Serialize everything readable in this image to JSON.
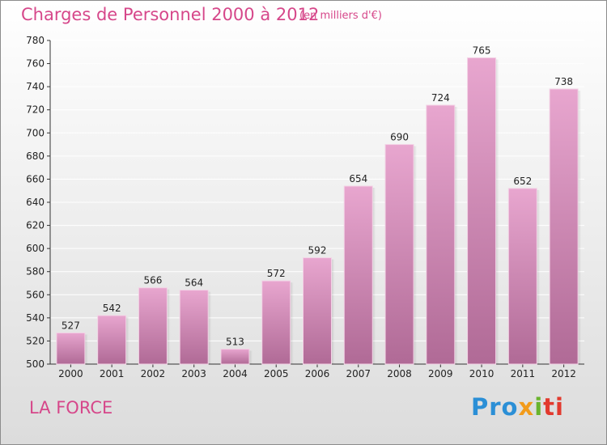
{
  "header": {
    "title": "Charges de Personnel 2000 à 2012",
    "subtitle": "(en milliers d'€)"
  },
  "footer": {
    "commune": "LA FORCE",
    "brand_parts": [
      "Pro",
      "x",
      "i",
      "ti"
    ]
  },
  "colors": {
    "title": "#d6478a",
    "bar_top": "#e8a6cf",
    "bar_bottom": "#b06a96",
    "grid": "#ffffff",
    "brand": [
      "#2b8fd6",
      "#f29b1a",
      "#6ab42d",
      "#e23a2e"
    ]
  },
  "chart_data": {
    "type": "bar",
    "title": "Charges de Personnel 2000 à 2012",
    "subtitle": "(en milliers d'€)",
    "categories": [
      "2000",
      "2001",
      "2002",
      "2003",
      "2004",
      "2005",
      "2006",
      "2007",
      "2008",
      "2009",
      "2010",
      "2011",
      "2012"
    ],
    "values": [
      527,
      542,
      566,
      564,
      513,
      572,
      592,
      654,
      690,
      724,
      765,
      652,
      738
    ],
    "ylim": [
      500,
      780
    ],
    "yticks": [
      500,
      520,
      540,
      560,
      580,
      600,
      620,
      640,
      660,
      680,
      700,
      720,
      740,
      760,
      780
    ],
    "grid": true,
    "data_labels": true
  }
}
